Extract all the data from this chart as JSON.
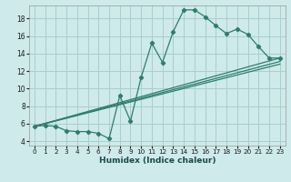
{
  "xlabel": "Humidex (Indice chaleur)",
  "ylabel": "",
  "line_color": "#2e7d6e",
  "bg_color": "#ceeaea",
  "grid_color": "#aacece",
  "xlim": [
    -0.5,
    23.5
  ],
  "ylim": [
    3.5,
    19.5
  ],
  "xticks": [
    0,
    1,
    2,
    3,
    4,
    5,
    6,
    7,
    8,
    9,
    10,
    11,
    12,
    13,
    14,
    15,
    16,
    17,
    18,
    19,
    20,
    21,
    22,
    23
  ],
  "yticks": [
    4,
    6,
    8,
    10,
    12,
    14,
    16,
    18
  ],
  "main_x": [
    0,
    1,
    2,
    3,
    4,
    5,
    6,
    7,
    8,
    9,
    10,
    11,
    12,
    13,
    14,
    15,
    16,
    17,
    18,
    19,
    20,
    21,
    22,
    23
  ],
  "main_y": [
    5.7,
    5.8,
    5.7,
    5.2,
    5.1,
    5.1,
    4.9,
    4.3,
    9.2,
    6.3,
    11.3,
    15.2,
    13.0,
    16.5,
    19.0,
    19.0,
    18.2,
    17.2,
    16.3,
    16.8,
    16.2,
    14.8,
    13.5,
    13.5
  ],
  "line1_x": [
    0,
    23
  ],
  "line1_y": [
    5.7,
    13.5
  ],
  "line2_x": [
    0,
    23
  ],
  "line2_y": [
    5.7,
    12.8
  ],
  "line3_x": [
    0,
    23
  ],
  "line3_y": [
    5.7,
    13.1
  ]
}
